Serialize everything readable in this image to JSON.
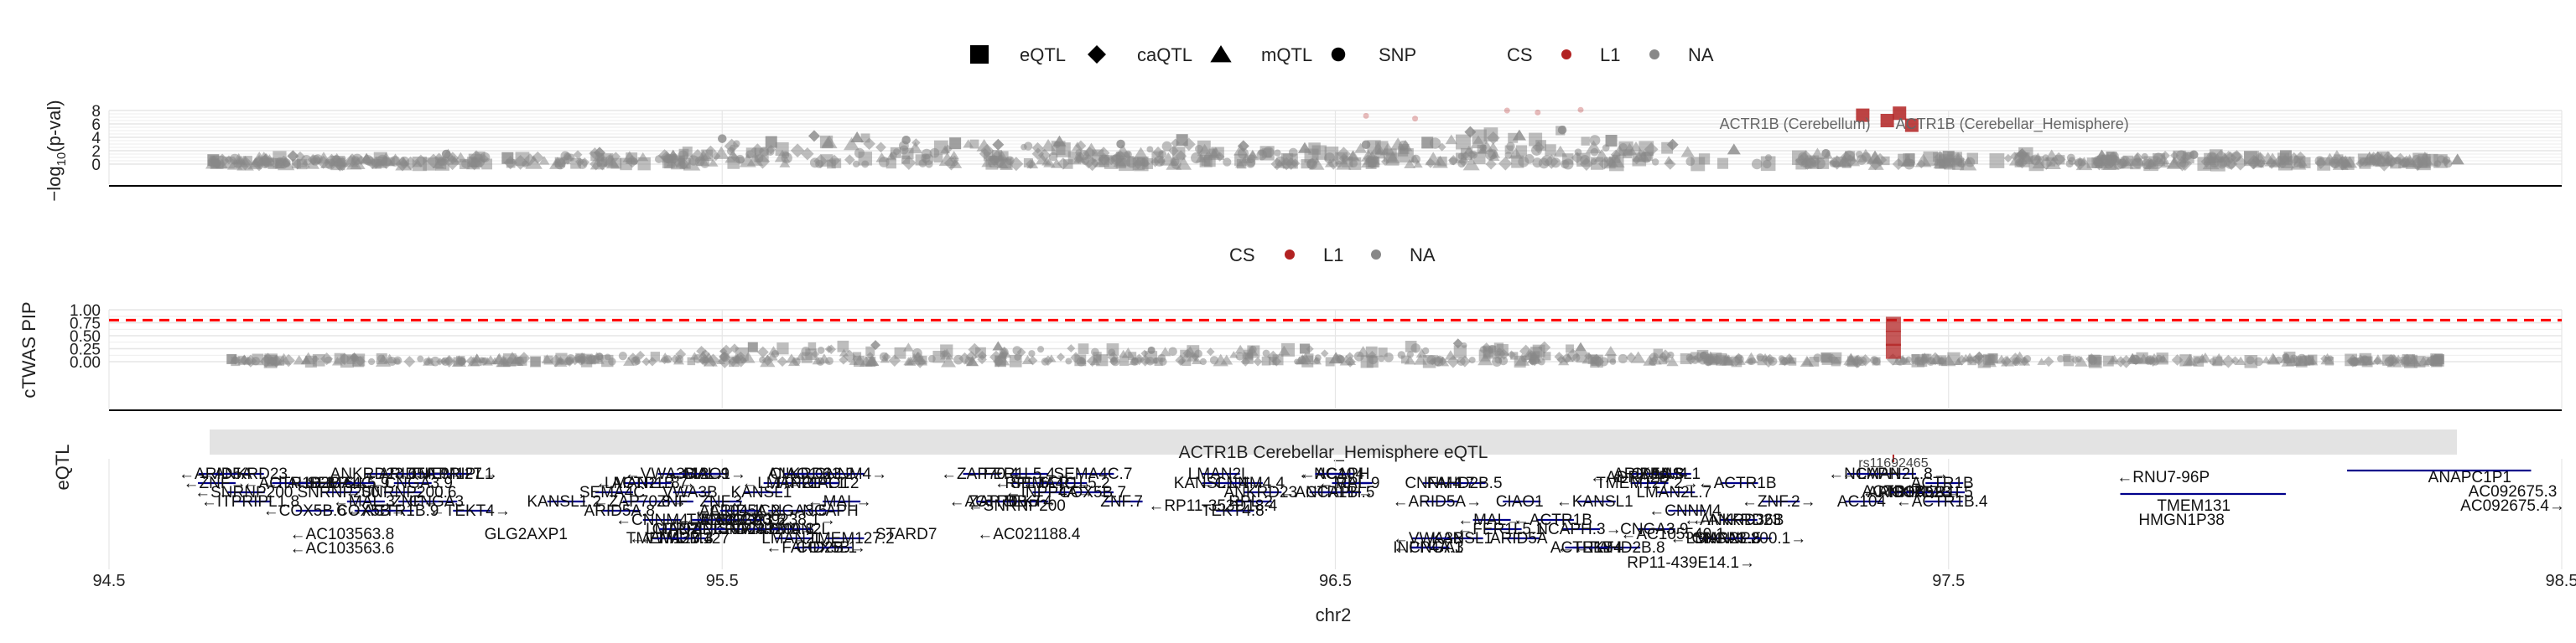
{
  "colors": {
    "grey": "#888888",
    "grid": "#e6e6e6",
    "cs_l1": "#b22222",
    "threshold": "#ff0000",
    "gene": "#00008b",
    "strip": "#e3e3e3"
  },
  "legend_top": {
    "shapes": [
      {
        "label": "eQTL",
        "icon": "square"
      },
      {
        "label": "caQTL",
        "icon": "diamond"
      },
      {
        "label": "mQTL",
        "icon": "triangle"
      },
      {
        "label": "SNP",
        "icon": "circle"
      }
    ],
    "cs_title": "CS",
    "cs_items": [
      {
        "label": "L1",
        "color": "#b22222"
      },
      {
        "label": "NA",
        "color": "#888888"
      }
    ]
  },
  "legend_mid": {
    "cs_title": "CS",
    "cs_items": [
      {
        "label": "L1",
        "color": "#b22222"
      },
      {
        "label": "NA",
        "color": "#888888"
      }
    ]
  },
  "panel_labels": {
    "strip": "ACTR1B Cerebellar_Hemisphere eQTL",
    "rsid": "rs11692465",
    "gene_panel_ylabel": "eQTL"
  },
  "chart_data": [
    {
      "type": "scatter",
      "panel": "top",
      "ylabel": "-log10(p-val)",
      "ylim": [
        0,
        8
      ],
      "yticks": [
        0,
        2,
        4,
        6,
        8
      ],
      "xlim": [
        94.5,
        98.5
      ],
      "grid": true,
      "legend": "top",
      "annotations": [
        "ACTR1B (Cerebellum)",
        "ACTR1B (Cerebellar_Hemisphere)"
      ],
      "series": [
        {
          "name": "NA",
          "x": [
            94.67,
            94.8,
            94.92,
            95.05,
            95.15,
            95.3,
            95.42,
            95.5,
            95.58,
            95.65,
            95.72,
            95.8,
            95.88,
            95.95,
            96.05,
            96.15,
            96.25,
            96.35,
            96.45,
            96.55,
            96.65,
            96.72,
            96.8,
            96.87,
            96.95,
            97.05,
            97.15,
            97.3,
            97.5,
            97.62,
            97.75,
            97.9,
            98.05,
            98.2,
            98.33
          ],
          "y": [
            0.6,
            1.2,
            0.8,
            1.5,
            0.9,
            1.7,
            1.3,
            3.8,
            3.3,
            4.2,
            4.0,
            3.6,
            3.1,
            2.9,
            3.4,
            3.0,
            3.6,
            2.7,
            2.4,
            2.9,
            3.2,
            4.8,
            4.3,
            5.1,
            3.5,
            2.9,
            2.2,
            1.6,
            1.1,
            1.5,
            1.3,
            1.4,
            1.2,
            1.0,
            0.7
          ]
        },
        {
          "name": "L1",
          "x": [
            97.36,
            97.4,
            97.42,
            97.44
          ],
          "y": [
            7.3,
            6.5,
            7.6,
            5.8
          ]
        }
      ]
    },
    {
      "type": "scatter",
      "panel": "middle",
      "ylabel": "cTWAS PIP",
      "ylim": [
        0,
        1
      ],
      "yticks": [
        0,
        0.25,
        0.5,
        0.75,
        1
      ],
      "ytick_labels": [
        "0.00",
        "0.25",
        "0.50",
        "0.75",
        "1.00"
      ],
      "xlim": [
        94.5,
        98.5
      ],
      "threshold": 0.8,
      "grid": true,
      "legend": "top",
      "series": [
        {
          "name": "NA",
          "x": [
            94.7,
            94.9,
            95.1,
            95.3,
            95.55,
            95.75,
            95.95,
            96.2,
            96.45,
            96.7,
            96.9,
            97.1,
            97.3,
            97.55,
            97.8,
            98.05,
            98.3
          ],
          "y": [
            0.05,
            0.08,
            0.06,
            0.1,
            0.28,
            0.32,
            0.3,
            0.22,
            0.25,
            0.35,
            0.28,
            0.12,
            0.08,
            0.1,
            0.07,
            0.09,
            0.05
          ]
        },
        {
          "name": "L1",
          "x": [
            97.41,
            97.41,
            97.41
          ],
          "y": [
            0.72,
            0.45,
            0.2
          ]
        }
      ]
    },
    {
      "type": "gene-track",
      "panel": "bottom",
      "xlabel": "chr2",
      "xlim": [
        94.5,
        98.5
      ],
      "xticks": [
        94.5,
        95.5,
        96.5,
        97.5,
        98.5
      ],
      "xtick_labels": [
        "94.5",
        "95.5",
        "96.5",
        "97.5",
        "98.5"
      ],
      "highlight_x": 97.41,
      "genes": [
        {
          "label": "←RNU7-96P",
          "x": 97.85,
          "row": 0
        },
        {
          "label": "ANAPC1P1",
          "x": 98.35,
          "row": 0
        },
        {
          "label": "AC092675.3",
          "x": 98.42,
          "row": 1
        },
        {
          "label": "AC092675.4→",
          "x": 98.42,
          "row": 2
        },
        {
          "label": "TMEM131",
          "x": 97.9,
          "row": 2
        },
        {
          "label": "HMGN1P38",
          "x": 97.88,
          "row": 3
        },
        {
          "label": "←ANKRD36B",
          "x": 97.15,
          "row": 3
        },
        {
          "label": "←AC105540.1",
          "x": 97.05,
          "row": 4
        },
        {
          "label": "←ADRA2B",
          "x": 96.98,
          "row": 0
        },
        {
          "label": "←SNRNP200",
          "x": 95.98,
          "row": 2
        },
        {
          "label": "←AC021188.4",
          "x": 96.0,
          "row": 4
        },
        {
          "label": "STARD7",
          "x": 95.8,
          "row": 4
        },
        {
          "label": "←RP11-353D18.4",
          "x": 96.3,
          "row": 2
        },
        {
          "label": "←AC103563.8",
          "x": 94.88,
          "row": 4
        },
        {
          "label": "←AC103563.6",
          "x": 94.88,
          "row": 5
        },
        {
          "label": "GLG2AXP1",
          "x": 95.18,
          "row": 4
        },
        {
          "label": "AC009238.1→",
          "x": 95.6,
          "row": 3
        },
        {
          "label": "RP11-439E14.1→",
          "x": 97.08,
          "row": 6
        },
        {
          "label": "ACTR1B",
          "x": 97.41,
          "row": 1
        }
      ]
    }
  ]
}
